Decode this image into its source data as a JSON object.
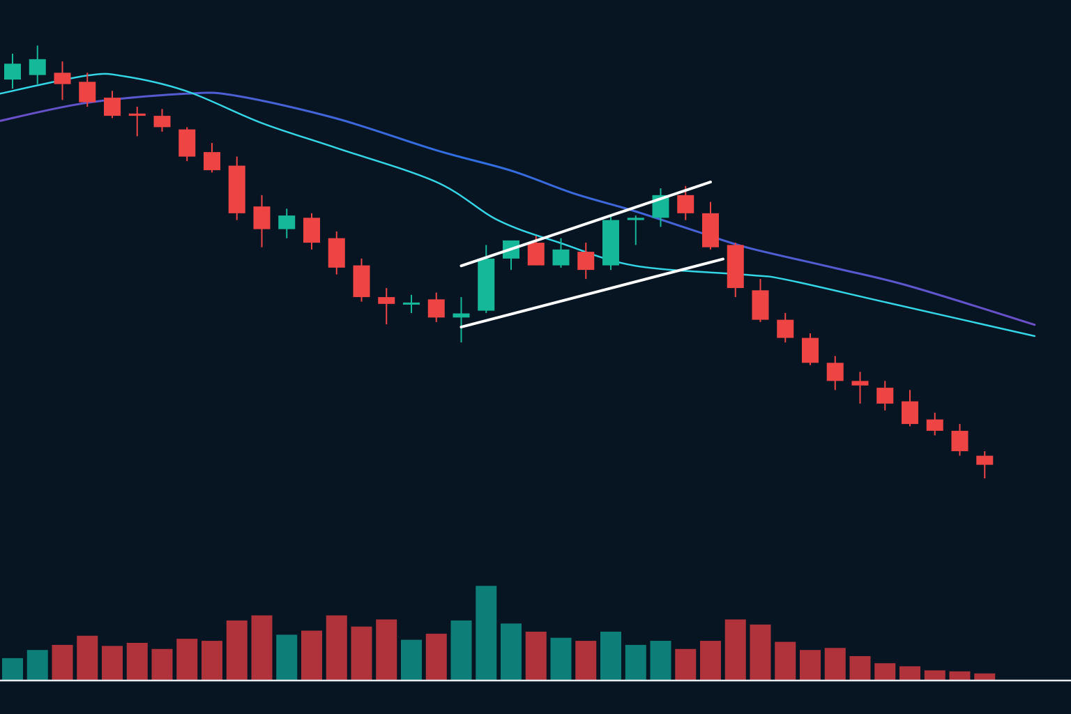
{
  "chart_data": {
    "type": "candlestick",
    "title": "",
    "xlabel": "",
    "ylabel": "",
    "grid": false,
    "legend": "none",
    "price_range": [
      0,
      100
    ],
    "volume_range": [
      0,
      10
    ],
    "colors": {
      "background": "#071523",
      "up": "#16b89a",
      "down": "#ef4444",
      "volume_up": "#0e7f78",
      "volume_down": "#b0323a",
      "ma_fast": "#34d6e6",
      "ma_slow_start": "#6a4fc7",
      "ma_slow_mid": "#2f6fe0",
      "channel": "#ffffff",
      "baseline": "#e6edf3"
    },
    "candles": [
      {
        "o": 88.6,
        "h": 94.3,
        "l": 86.6,
        "c": 92.1
      },
      {
        "o": 89.6,
        "h": 96.1,
        "l": 87.6,
        "c": 93.1
      },
      {
        "o": 90.1,
        "h": 92.6,
        "l": 84.1,
        "c": 87.6
      },
      {
        "o": 88.1,
        "h": 90.1,
        "l": 82.6,
        "c": 83.6
      },
      {
        "o": 84.6,
        "h": 86.1,
        "l": 80.1,
        "c": 80.6
      },
      {
        "o": 81.1,
        "h": 82.6,
        "l": 76.1,
        "c": 80.6
      },
      {
        "o": 80.6,
        "h": 82.1,
        "l": 77.1,
        "c": 78.1
      },
      {
        "o": 77.6,
        "h": 78.1,
        "l": 70.6,
        "c": 71.6
      },
      {
        "o": 72.6,
        "h": 74.6,
        "l": 68.1,
        "c": 68.6
      },
      {
        "o": 69.6,
        "h": 71.6,
        "l": 57.6,
        "c": 59.1
      },
      {
        "o": 60.6,
        "h": 63.1,
        "l": 51.6,
        "c": 55.6
      },
      {
        "o": 55.6,
        "h": 60.1,
        "l": 53.6,
        "c": 58.6
      },
      {
        "o": 58.1,
        "h": 59.1,
        "l": 51.1,
        "c": 52.6
      },
      {
        "o": 53.6,
        "h": 55.1,
        "l": 45.6,
        "c": 47.1
      },
      {
        "o": 47.6,
        "h": 49.1,
        "l": 39.6,
        "c": 40.6
      },
      {
        "o": 40.6,
        "h": 42.6,
        "l": 34.6,
        "c": 39.1
      },
      {
        "o": 39.1,
        "h": 41.1,
        "l": 37.1,
        "c": 39.4
      },
      {
        "o": 40.1,
        "h": 41.6,
        "l": 35.1,
        "c": 36.1
      },
      {
        "o": 36.1,
        "h": 40.6,
        "l": 30.6,
        "c": 37.0
      },
      {
        "o": 37.6,
        "h": 52.1,
        "l": 37.1,
        "c": 49.1
      },
      {
        "o": 49.1,
        "h": 52.6,
        "l": 46.6,
        "c": 53.1
      },
      {
        "o": 52.6,
        "h": 54.1,
        "l": 47.6,
        "c": 47.6
      },
      {
        "o": 47.6,
        "h": 53.6,
        "l": 47.1,
        "c": 51.1
      },
      {
        "o": 50.6,
        "h": 52.6,
        "l": 44.6,
        "c": 46.6
      },
      {
        "o": 47.6,
        "h": 58.6,
        "l": 46.6,
        "c": 57.6
      },
      {
        "o": 57.6,
        "h": 58.6,
        "l": 52.1,
        "c": 58.1
      },
      {
        "o": 58.1,
        "h": 64.6,
        "l": 56.1,
        "c": 63.1
      },
      {
        "o": 63.1,
        "h": 65.1,
        "l": 57.6,
        "c": 59.1
      },
      {
        "o": 59.1,
        "h": 61.6,
        "l": 51.1,
        "c": 51.6
      },
      {
        "o": 52.1,
        "h": 52.6,
        "l": 40.6,
        "c": 42.6
      },
      {
        "o": 42.1,
        "h": 44.6,
        "l": 35.1,
        "c": 35.6
      },
      {
        "o": 35.6,
        "h": 37.1,
        "l": 30.6,
        "c": 31.6
      },
      {
        "o": 31.6,
        "h": 32.6,
        "l": 25.6,
        "c": 26.1
      },
      {
        "o": 26.1,
        "h": 27.6,
        "l": 20.1,
        "c": 22.1
      },
      {
        "o": 22.1,
        "h": 24.1,
        "l": 17.1,
        "c": 21.1
      },
      {
        "o": 20.6,
        "h": 22.1,
        "l": 15.6,
        "c": 17.1
      },
      {
        "o": 17.6,
        "h": 20.1,
        "l": 12.1,
        "c": 12.6
      },
      {
        "o": 13.6,
        "h": 15.1,
        "l": 10.1,
        "c": 11.1
      },
      {
        "o": 11.1,
        "h": 12.6,
        "l": 5.6,
        "c": 6.6
      },
      {
        "o": 5.6,
        "h": 6.6,
        "l": 0.6,
        "c": 3.6
      }
    ],
    "volume": [
      2.2,
      3.0,
      3.5,
      4.4,
      3.4,
      3.7,
      3.1,
      4.1,
      3.9,
      5.9,
      6.4,
      4.5,
      4.9,
      6.4,
      5.3,
      6.0,
      4.0,
      4.6,
      5.9,
      9.3,
      5.6,
      4.8,
      4.2,
      3.9,
      4.8,
      3.5,
      3.9,
      3.1,
      3.9,
      6.0,
      5.5,
      3.8,
      3.0,
      3.2,
      2.4,
      1.7,
      1.4,
      1.0,
      0.9,
      0.7
    ],
    "ma_fast": [
      [
        -0.5,
        85.5
      ],
      [
        3.0,
        89.5
      ],
      [
        4.5,
        89.3
      ],
      [
        7.0,
        86.0
      ],
      [
        10.0,
        79.0
      ],
      [
        13.0,
        73.5
      ],
      [
        17.0,
        66.0
      ],
      [
        19.5,
        57.5
      ],
      [
        22.0,
        52.5
      ],
      [
        25.0,
        47.5
      ],
      [
        29.5,
        45.5
      ],
      [
        31.0,
        44.5
      ],
      [
        35.0,
        39.5
      ],
      [
        41.0,
        32.0
      ]
    ],
    "ma_slow": [
      [
        -0.5,
        79.5
      ],
      [
        3.0,
        83.5
      ],
      [
        7.0,
        85.5
      ],
      [
        9.0,
        85.0
      ],
      [
        13.0,
        80.0
      ],
      [
        17.0,
        73.0
      ],
      [
        20.0,
        68.5
      ],
      [
        22.5,
        63.5
      ],
      [
        25.0,
        59.5
      ],
      [
        27.5,
        55.0
      ],
      [
        29.5,
        51.5
      ],
      [
        33.0,
        47.0
      ],
      [
        36.0,
        43.0
      ],
      [
        41.0,
        34.5
      ]
    ],
    "channel_upper": [
      [
        18.0,
        47.5
      ],
      [
        28.0,
        66.0
      ]
    ],
    "channel_lower": [
      [
        18.0,
        34.0
      ],
      [
        28.5,
        49.0
      ]
    ]
  }
}
